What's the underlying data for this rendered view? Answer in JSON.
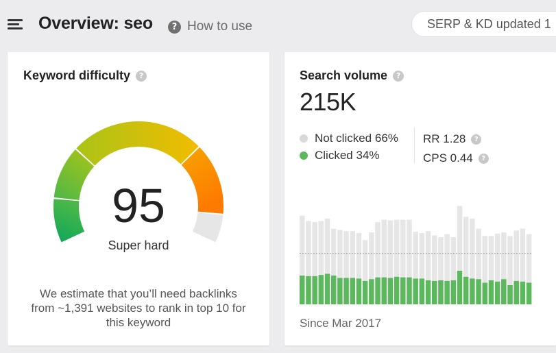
{
  "header": {
    "title": "Overview: seo",
    "how_to_use": "How to use",
    "serp_badge": "SERP & KD updated 1"
  },
  "keyword_difficulty": {
    "title": "Keyword difficulty",
    "score": "95",
    "score_value": 95,
    "label": "Super hard",
    "note": "We estimate that you’ll need backlinks from ~1,391 websites to rank in top 10 for this keyword",
    "colors": {
      "green_dark": "#0ea65a",
      "green": "#4cb848",
      "yellow_green": "#aac419",
      "yellow": "#f0c000",
      "orange": "#ff8800",
      "track": "#e6e6e6"
    }
  },
  "search_volume": {
    "title": "Search volume",
    "value": "215K",
    "legend": [
      {
        "label": "Not clicked 66%",
        "color": "#d9d9d9"
      },
      {
        "label": "Clicked 34%",
        "color": "#5cb85c"
      }
    ],
    "rr": "RR 1.28",
    "cps": "CPS 0.44",
    "since": "Since Mar 2017",
    "chart_data": {
      "type": "bar",
      "stacked": true,
      "series": [
        {
          "name": "Clicked",
          "color": "#5cb85c",
          "values": [
            48,
            47,
            47,
            49,
            51,
            48,
            44,
            44,
            44,
            43,
            39,
            42,
            45,
            45,
            44,
            46,
            45,
            45,
            43,
            43,
            40,
            39,
            40,
            39,
            40,
            56,
            46,
            43,
            42,
            36,
            40,
            38,
            42,
            32,
            39,
            38,
            36
          ]
        },
        {
          "name": "Not clicked",
          "color": "#e6e6e6",
          "values": [
            100,
            92,
            90,
            90,
            92,
            78,
            80,
            78,
            78,
            76,
            68,
            78,
            92,
            96,
            96,
            95,
            96,
            96,
            78,
            76,
            82,
            76,
            72,
            78,
            72,
            108,
            100,
            100,
            84,
            78,
            74,
            80,
            78,
            82,
            84,
            88,
            81
          ]
        }
      ],
      "reference_line": 85,
      "ylim": [
        0,
        160
      ]
    }
  }
}
